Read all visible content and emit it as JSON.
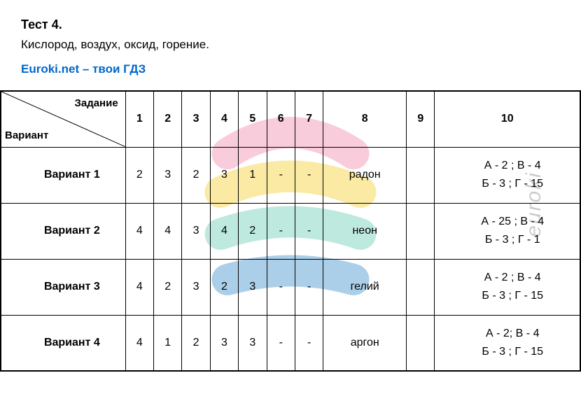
{
  "title": "Тест 4.",
  "subtitle": "Кислород, воздух, оксид, горение.",
  "link_text": "Euroki.net – твои ГДЗ",
  "watermark_text": "euroki",
  "header": {
    "task": "Задание",
    "variant": "Вариант",
    "cols": [
      "1",
      "2",
      "3",
      "4",
      "5",
      "6",
      "7",
      "8",
      "9",
      "10"
    ]
  },
  "rows": [
    {
      "label": "Вариант 1",
      "cells": [
        "2",
        "3",
        "2",
        "3",
        "1",
        "-",
        "-",
        "радон",
        "",
        "А - 2 ; В - 4\nБ - 3 ; Г - 15"
      ]
    },
    {
      "label": "Вариант 2",
      "cells": [
        "4",
        "4",
        "3",
        "4",
        "2",
        "-",
        "-",
        "неон",
        "",
        "А - 25 ; В - 4\nБ - 3 ; Г - 1"
      ]
    },
    {
      "label": "Вариант 3",
      "cells": [
        "4",
        "2",
        "3",
        "2",
        "3",
        "-",
        "-",
        "гелий",
        "",
        "А - 2 ; В - 4\nБ - 3 ; Г - 15"
      ]
    },
    {
      "label": "Вариант 4",
      "cells": [
        "4",
        "1",
        "2",
        "3",
        "3",
        "-",
        "-",
        "аргон",
        "",
        "А - 2;  В - 4\nБ - 3 ; Г - 15"
      ]
    }
  ],
  "watermark_colors": {
    "pink": "#f499b8",
    "yellow": "#f5d547",
    "cyan": "#7dd3c0",
    "blue": "#5a9fd4"
  }
}
